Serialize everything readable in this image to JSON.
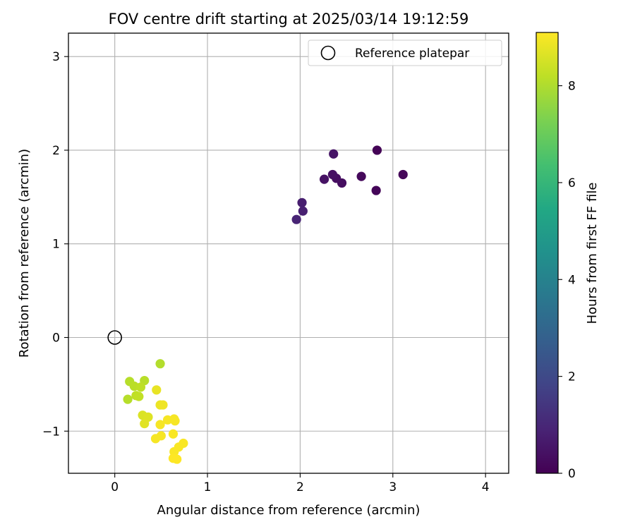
{
  "chart_data": {
    "type": "scatter",
    "title": "FOV centre drift starting at 2025/03/14 19:12:59",
    "xlabel": "Angular distance from reference (arcmin)",
    "ylabel": "Rotation from reference (arcmin)",
    "xlim": [
      -0.5,
      4.25
    ],
    "ylim": [
      -1.45,
      3.25
    ],
    "xticks": [
      0,
      1,
      2,
      3,
      4
    ],
    "yticks": [
      -1,
      0,
      1,
      2,
      3
    ],
    "xtick_labels": [
      "0",
      "1",
      "2",
      "3",
      "4"
    ],
    "ytick_labels": [
      "−1",
      "0",
      "1",
      "2",
      "3"
    ],
    "grid": true,
    "legend": {
      "location": "top-right",
      "entries": [
        "Reference platepar"
      ]
    },
    "reference_point": {
      "x": 0,
      "y": 0,
      "label": "Reference platepar"
    },
    "colorbar": {
      "label": "Hours from first FF file",
      "colormap": "viridis",
      "range": [
        0,
        9.1
      ],
      "ticks": [
        0,
        2,
        4,
        6,
        8
      ],
      "tick_labels": [
        "0",
        "2",
        "4",
        "6",
        "8"
      ]
    },
    "points": [
      {
        "x": 2.83,
        "y": 2.0,
        "hours": 0.05
      },
      {
        "x": 2.82,
        "y": 1.57,
        "hours": 0.1
      },
      {
        "x": 3.11,
        "y": 1.74,
        "hours": 0.15
      },
      {
        "x": 2.66,
        "y": 1.72,
        "hours": 0.2
      },
      {
        "x": 2.45,
        "y": 1.65,
        "hours": 0.3
      },
      {
        "x": 2.39,
        "y": 1.7,
        "hours": 0.35
      },
      {
        "x": 2.35,
        "y": 1.74,
        "hours": 0.4
      },
      {
        "x": 2.26,
        "y": 1.69,
        "hours": 0.45
      },
      {
        "x": 2.36,
        "y": 1.96,
        "hours": 0.5
      },
      {
        "x": 2.02,
        "y": 1.44,
        "hours": 0.75
      },
      {
        "x": 2.03,
        "y": 1.35,
        "hours": 0.8
      },
      {
        "x": 1.96,
        "y": 1.26,
        "hours": 0.9
      },
      {
        "x": 0.49,
        "y": -0.28,
        "hours": 8.05
      },
      {
        "x": 0.16,
        "y": -0.47,
        "hours": 8.1
      },
      {
        "x": 0.32,
        "y": -0.46,
        "hours": 8.12
      },
      {
        "x": 0.21,
        "y": -0.52,
        "hours": 8.15
      },
      {
        "x": 0.28,
        "y": -0.53,
        "hours": 8.2
      },
      {
        "x": 0.23,
        "y": -0.62,
        "hours": 8.22
      },
      {
        "x": 0.26,
        "y": -0.63,
        "hours": 8.25
      },
      {
        "x": 0.14,
        "y": -0.66,
        "hours": 8.1
      },
      {
        "x": 0.45,
        "y": -0.56,
        "hours": 8.8
      },
      {
        "x": 0.49,
        "y": -0.72,
        "hours": 8.85
      },
      {
        "x": 0.52,
        "y": -0.72,
        "hours": 8.9
      },
      {
        "x": 0.3,
        "y": -0.83,
        "hours": 8.6
      },
      {
        "x": 0.36,
        "y": -0.85,
        "hours": 8.65
      },
      {
        "x": 0.32,
        "y": -0.92,
        "hours": 8.7
      },
      {
        "x": 0.49,
        "y": -0.93,
        "hours": 9.0
      },
      {
        "x": 0.57,
        "y": -0.88,
        "hours": 9.0
      },
      {
        "x": 0.64,
        "y": -0.87,
        "hours": 9.0
      },
      {
        "x": 0.65,
        "y": -0.89,
        "hours": 9.0
      },
      {
        "x": 0.5,
        "y": -1.05,
        "hours": 9.0
      },
      {
        "x": 0.63,
        "y": -1.03,
        "hours": 9.05
      },
      {
        "x": 0.44,
        "y": -1.08,
        "hours": 9.0
      },
      {
        "x": 0.74,
        "y": -1.13,
        "hours": 9.05
      },
      {
        "x": 0.69,
        "y": -1.17,
        "hours": 9.05
      },
      {
        "x": 0.64,
        "y": -1.22,
        "hours": 9.05
      },
      {
        "x": 0.63,
        "y": -1.29,
        "hours": 9.1
      },
      {
        "x": 0.67,
        "y": -1.3,
        "hours": 9.1
      }
    ]
  }
}
